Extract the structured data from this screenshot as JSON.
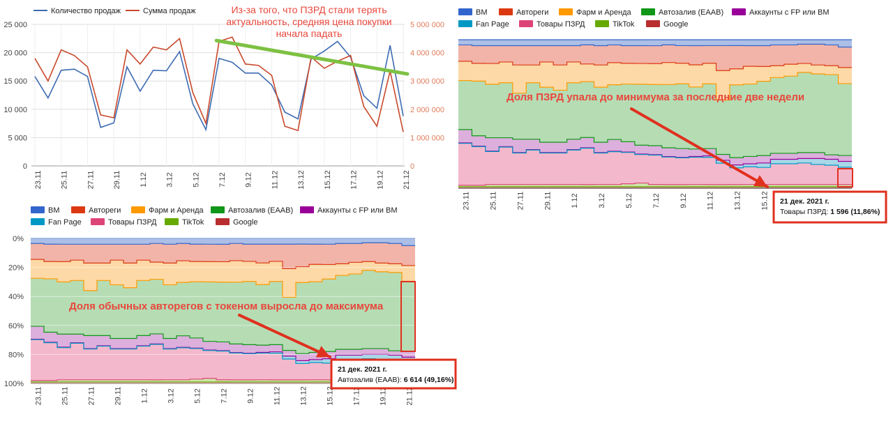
{
  "chart_data": [
    {
      "id": "sales",
      "type": "line",
      "categories": [
        "23.11",
        "24.11",
        "25.11",
        "26.11",
        "27.11",
        "28.11",
        "29.11",
        "30.11",
        "1.12",
        "2.12",
        "3.12",
        "4.12",
        "5.12",
        "6.12",
        "7.12",
        "8.12",
        "9.12",
        "10.12",
        "11.12",
        "12.12",
        "13.12",
        "14.12",
        "15.12",
        "16.12",
        "17.12",
        "18.12",
        "19.12",
        "20.12",
        "21.12"
      ],
      "x_tick_labels": [
        "23.11",
        "25.11",
        "27.11",
        "29.11",
        "1.12",
        "3.12",
        "5.12",
        "7.12",
        "9.12",
        "11.12",
        "13.12",
        "15.12",
        "17.12",
        "19.12",
        "21.12"
      ],
      "y_left": {
        "ticks": [
          0,
          5000,
          10000,
          15000,
          20000,
          25000
        ],
        "tick_labels": [
          "0",
          "5 000",
          "10 000",
          "15 000",
          "20 000",
          "25 000"
        ],
        "range": [
          0,
          25000
        ]
      },
      "y_right": {
        "ticks": [
          0,
          1000000,
          2000000,
          3000000,
          4000000,
          5000000
        ],
        "tick_labels": [
          "0",
          "1 000 000",
          "2 000 000",
          "3 000 000",
          "4 000 000",
          "5 000 000"
        ],
        "range": [
          0,
          5000000
        ]
      },
      "series": [
        {
          "name": "Количество продаж",
          "color": "#3d6bb3",
          "axis": "left",
          "values": [
            15800,
            12000,
            16900,
            17100,
            15800,
            6800,
            7600,
            17500,
            13200,
            16900,
            16800,
            20200,
            11000,
            6400,
            19000,
            18300,
            16400,
            16400,
            14300,
            9500,
            8300,
            18900,
            20300,
            22000,
            19200,
            12400,
            10200,
            21300,
            8800
          ]
        },
        {
          "name": "Сумма продаж",
          "color": "#c8492b",
          "axis": "right",
          "values": [
            3800000,
            3000000,
            4100000,
            3900000,
            3500000,
            1800000,
            1700000,
            4100000,
            3600000,
            4200000,
            4100000,
            4500000,
            2600000,
            1500000,
            4400000,
            4550000,
            3600000,
            3550000,
            3200000,
            1400000,
            1250000,
            3850000,
            3450000,
            3700000,
            3900000,
            2100000,
            1400000,
            3350000,
            1200000
          ]
        }
      ],
      "legend_position": "top-left",
      "grid": true,
      "trend_line": {
        "color": "#7dc142",
        "from": {
          "x": "6.12",
          "y": 4430000
        },
        "to": {
          "x": "21.12",
          "y": 3250000
        }
      },
      "annotation": [
        "Из-за того, что ПЗРД стали терять",
        "актуальность, средняя цена покупки",
        "начала падать"
      ]
    },
    {
      "id": "share-top",
      "type": "area",
      "stacked": "percent",
      "categories": [
        "23.11",
        "24.11",
        "25.11",
        "26.11",
        "27.11",
        "28.11",
        "29.11",
        "30.11",
        "1.12",
        "2.12",
        "3.12",
        "4.12",
        "5.12",
        "6.12",
        "7.12",
        "8.12",
        "9.12",
        "10.12",
        "11.12",
        "12.12",
        "13.12",
        "14.12",
        "15.12",
        "16.12",
        "17.12",
        "18.12",
        "19.12",
        "20.12",
        "21.12"
      ],
      "x_tick_labels": [
        "23.11",
        "25.11",
        "27.11",
        "29.11",
        "1.12",
        "3.12",
        "5.12",
        "7.12",
        "9.12",
        "11.12",
        "13.12",
        "15.12",
        "17.12",
        "19.12",
        "21.12"
      ],
      "legend_position": "top",
      "annotation": "Доля ПЗРД упала до минимума за последние две недели",
      "tooltip": {
        "date": "21 дек. 2021 г.",
        "series": "Товары ПЗРД",
        "value": "1 596 (11,86%)"
      }
    },
    {
      "id": "share-bottom",
      "type": "area",
      "stacked": "percent",
      "categories": [
        "23.11",
        "24.11",
        "25.11",
        "26.11",
        "27.11",
        "28.11",
        "29.11",
        "30.11",
        "1.12",
        "2.12",
        "3.12",
        "4.12",
        "5.12",
        "6.12",
        "7.12",
        "8.12",
        "9.12",
        "10.12",
        "11.12",
        "12.12",
        "13.12",
        "14.12",
        "15.12",
        "16.12",
        "17.12",
        "18.12",
        "19.12",
        "20.12",
        "21.12"
      ],
      "x_tick_labels": [
        "23.11",
        "25.11",
        "27.11",
        "29.11",
        "1.12",
        "3.12",
        "5.12",
        "7.12",
        "9.12",
        "11.12",
        "13.12",
        "15.12",
        "17.12",
        "19.12",
        "21.12"
      ],
      "y_tick_labels": [
        "0%",
        "20%",
        "40%",
        "60%",
        "80%",
        "100%"
      ],
      "legend_position": "top",
      "annotation": "Доля обычных автoрегов с токеном выросла до максимума",
      "tooltip": {
        "date": "21 дек. 2021 г.",
        "series": "Автозалив (EAAB)",
        "value": "6 614 (49,16%)"
      }
    }
  ],
  "share_series": [
    {
      "name": "BM",
      "color": "#3366cc",
      "fill": "#adbfe6",
      "values": [
        3.5,
        4,
        4,
        4,
        4,
        4,
        4,
        4,
        4,
        3.5,
        4,
        3.5,
        4,
        4,
        4,
        3.5,
        4,
        4,
        4,
        4,
        4,
        4,
        4,
        3.5,
        3.5,
        3,
        3,
        3.5,
        5
      ]
    },
    {
      "name": "Автореги",
      "color": "#dc3912",
      "fill": "#f2b4a8",
      "values": [
        11,
        12,
        12,
        11,
        13,
        13,
        11,
        13,
        11,
        13,
        13,
        12,
        12,
        12,
        12,
        12,
        12,
        13,
        12,
        17,
        16,
        14,
        14,
        14,
        13,
        13,
        14,
        14,
        14
      ]
    },
    {
      "name": "Фарм и Аренда",
      "color": "#ff9900",
      "fill": "#fcd9a6",
      "values": [
        13,
        12,
        14,
        14,
        19,
        12,
        17,
        17,
        14,
        12,
        15,
        15,
        14,
        14,
        14,
        15,
        14,
        15,
        14,
        20,
        11,
        12,
        10,
        8,
        8,
        6,
        6,
        6,
        11
      ]
    },
    {
      "name": "Автозалив (EAAB)",
      "color": "#109618",
      "fill": "#b6dcb4",
      "values": [
        33,
        37,
        36,
        37,
        31,
        38,
        37,
        35,
        38,
        38,
        37,
        37,
        39,
        41,
        41,
        43,
        44,
        42,
        44,
        37,
        50,
        49,
        50,
        51,
        52,
        54,
        53,
        54,
        49.16
      ]
    },
    {
      "name": "Аккаунты с FP или BM",
      "color": "#990099",
      "fill": "#dcafdc",
      "values": [
        9,
        7,
        9,
        6,
        9,
        7,
        7,
        7,
        7,
        7,
        7,
        8,
        7,
        6,
        6,
        6,
        6,
        5,
        5,
        4,
        5,
        5,
        5,
        4,
        4,
        4,
        4,
        3,
        4
      ]
    },
    {
      "name": "Fan Page",
      "color": "#0099c6",
      "fill": "#a8d8e8",
      "values": [
        0.3,
        0.3,
        0.3,
        0.3,
        0.3,
        0.3,
        0.3,
        0.3,
        0.3,
        0.3,
        0.3,
        0.3,
        0.3,
        0.3,
        0.3,
        0.3,
        0.3,
        0.5,
        1,
        2,
        2,
        2,
        3,
        3,
        3,
        3,
        4,
        4,
        4
      ]
    },
    {
      "name": "Товары ПЗРД",
      "color": "#dd4477",
      "fill": "#f4b8cc",
      "values": [
        28.2,
        26.2,
        22.2,
        25.2,
        21.2,
        23.2,
        21.2,
        21.2,
        23.2,
        24.7,
        21.2,
        22.2,
        21.2,
        19.2,
        19.7,
        18.7,
        18.2,
        18.5,
        18.5,
        14.5,
        11.5,
        12,
        11.5,
        14,
        14,
        14.5,
        13.5,
        13,
        11.86
      ]
    },
    {
      "name": "TikTok",
      "color": "#66aa00",
      "fill": "#cde5a8",
      "values": [
        1,
        1,
        1.5,
        1.5,
        1.5,
        1.5,
        1.5,
        1.5,
        1.5,
        1.5,
        1.5,
        1.5,
        2,
        2.5,
        1.5,
        1.5,
        1.5,
        1.5,
        1.5,
        1.5,
        1.5,
        1.5,
        1.5,
        1.5,
        1.5,
        1.5,
        1.5,
        1.5,
        1.5
      ]
    },
    {
      "name": "Google",
      "color": "#b82e2e",
      "fill": "#e2a8a8",
      "values": [
        1,
        1,
        1,
        1,
        1,
        1,
        1,
        1,
        1,
        1,
        1,
        1,
        1,
        1,
        1,
        1,
        1,
        1,
        1,
        1,
        1,
        1,
        1,
        1,
        1,
        1,
        1,
        1,
        1
      ]
    }
  ]
}
